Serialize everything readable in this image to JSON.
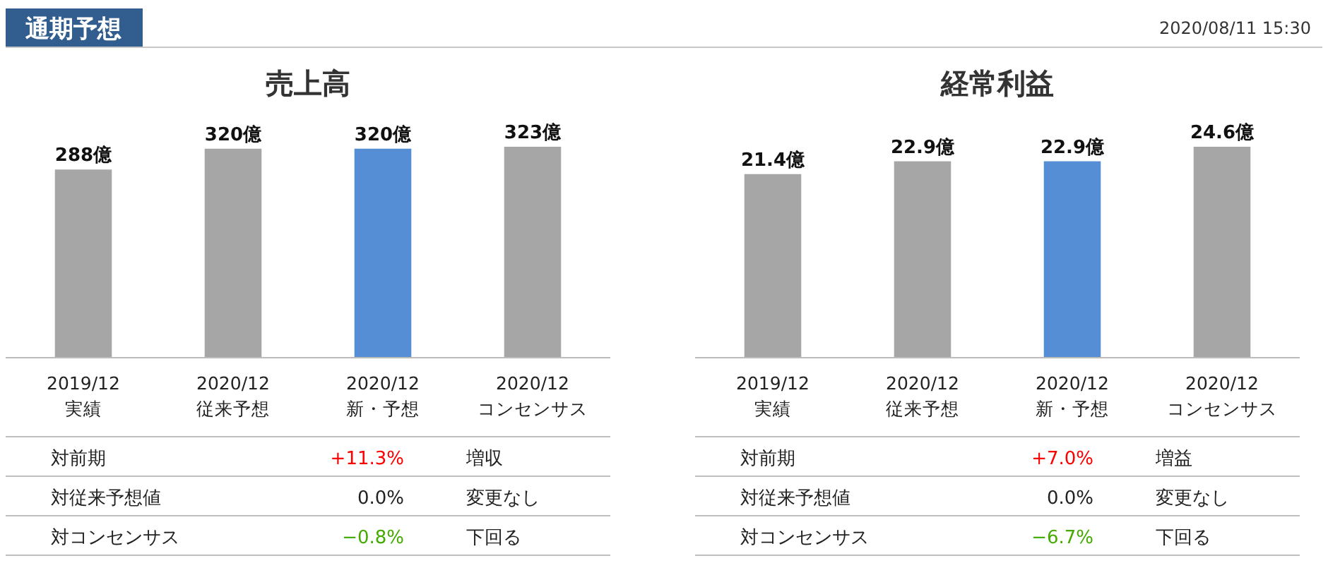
{
  "chart_data": [
    {
      "type": "other",
      "title": "通期予想",
      "annotations": [
        "2020/08/11 15:30"
      ]
    },
    {
      "type": "bar",
      "title": "売上高",
      "categories": [
        "2019/12\n実績",
        "2020/12\n従来予想",
        "2020/12\n新・予想",
        "2020/12\nコンセンサス"
      ],
      "values": [
        288,
        320,
        320,
        323
      ],
      "value_labels": [
        "288億",
        "320億",
        "320億",
        "323億"
      ],
      "colors": [
        "#a6a6a6",
        "#a6a6a6",
        "#558ed5",
        "#a6a6a6"
      ],
      "annotations": [
        "対前期",
        "+11.3%",
        "増収",
        "対従来予想値",
        "0.0%",
        "変更なし",
        "対コンセンサス",
        "−0.8%",
        "下回る"
      ]
    },
    {
      "type": "bar",
      "title": "経常利益",
      "categories": [
        "2019/12\n実績",
        "2020/12\n従来予想",
        "2020/12\n新・予想",
        "2020/12\nコンセンサス"
      ],
      "values": [
        21.4,
        22.9,
        22.9,
        24.6
      ],
      "value_labels": [
        "21.4億",
        "22.9億",
        "22.9億",
        "24.6億"
      ],
      "colors": [
        "#a6a6a6",
        "#a6a6a6",
        "#558ed5",
        "#a6a6a6"
      ],
      "annotations": [
        "対前期",
        "+7.0%",
        "増益",
        "対従来予想値",
        "0.0%",
        "変更なし",
        "対コンセンサス",
        "−6.7%",
        "下回る"
      ]
    }
  ]
}
